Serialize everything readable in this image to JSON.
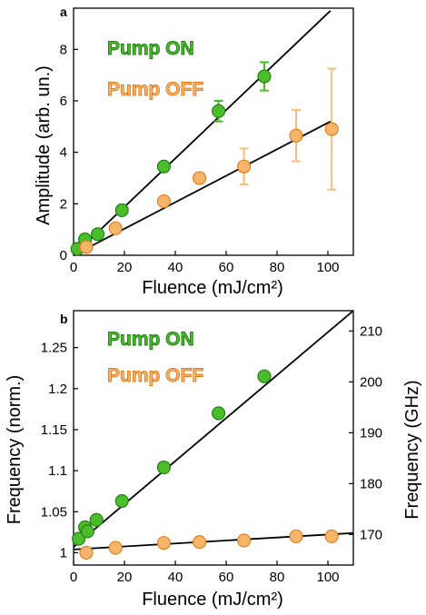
{
  "colors": {
    "on": "#4cbd2a",
    "on_dark": "#1e7a12",
    "off": "#f7b56a",
    "off_dark": "#e07a1a",
    "off_err": "#f5c07a",
    "fit": "#000000"
  },
  "chart_data": [
    {
      "panel_label": "a",
      "type": "scatter",
      "xlabel": "Fluence (mJ/cm²)",
      "ylabel": "Amplitude (arb. un.)",
      "xlim": [
        0,
        110
      ],
      "ylim": [
        0,
        9.6
      ],
      "x_ticks": [
        "0",
        "20",
        "40",
        "60",
        "80",
        "100"
      ],
      "y_ticks": [
        "0",
        "2",
        "4",
        "6",
        "8"
      ],
      "legend_placement": "top-left",
      "series": [
        {
          "name": "Pump ON",
          "color": "#4cbd2a",
          "points": [
            {
              "x": 1.5,
              "y": 0.25,
              "err": 0
            },
            {
              "x": 4.5,
              "y": 0.62,
              "err": 0
            },
            {
              "x": 9.5,
              "y": 0.82,
              "err": 0
            },
            {
              "x": 19,
              "y": 1.75,
              "err": 0
            },
            {
              "x": 35.5,
              "y": 3.45,
              "err": 0
            },
            {
              "x": 57,
              "y": 5.6,
              "err": 0.4
            },
            {
              "x": 75,
              "y": 6.95,
              "err": 0.55
            }
          ],
          "fit": {
            "x": [
              0,
              101
            ],
            "y": [
              0,
              9.5
            ]
          }
        },
        {
          "name": "Pump OFF",
          "color": "#f7b56a",
          "points": [
            {
              "x": 5,
              "y": 0.32,
              "err": 0
            },
            {
              "x": 16.5,
              "y": 1.05,
              "err": 0
            },
            {
              "x": 35.5,
              "y": 2.1,
              "err": 0
            },
            {
              "x": 49.5,
              "y": 3.0,
              "err": 0.2
            },
            {
              "x": 67,
              "y": 3.45,
              "err": 0.7
            },
            {
              "x": 87.5,
              "y": 4.65,
              "err": 1.0
            },
            {
              "x": 101.5,
              "y": 4.9,
              "err": 2.35
            }
          ],
          "fit": {
            "x": [
              0,
              101
            ],
            "y": [
              0,
              5.2
            ]
          }
        }
      ]
    },
    {
      "panel_label": "b",
      "type": "scatter",
      "xlabel": "Fluence (mJ/cm²)",
      "ylabel": "Frequency (norm.)",
      "y2label": "Frequency (GHz)",
      "xlim": [
        0,
        110
      ],
      "ylim": [
        0.985,
        1.295
      ],
      "y2lim": [
        164,
        214
      ],
      "x_ticks": [
        "0",
        "20",
        "40",
        "60",
        "80",
        "100"
      ],
      "y_ticks": [
        "1",
        "1.05",
        "1.1",
        "1.15",
        "1.2",
        "1.25"
      ],
      "y2_ticks": [
        "170",
        "180",
        "190",
        "200",
        "210"
      ],
      "legend_placement": "top-left",
      "series": [
        {
          "name": "Pump ON",
          "color": "#4cbd2a",
          "points": [
            {
              "x": 2,
              "y": 1.017
            },
            {
              "x": 4.5,
              "y": 1.031
            },
            {
              "x": 5.5,
              "y": 1.026
            },
            {
              "x": 9,
              "y": 1.04
            },
            {
              "x": 19,
              "y": 1.063
            },
            {
              "x": 35.5,
              "y": 1.104
            },
            {
              "x": 57,
              "y": 1.17
            },
            {
              "x": 75,
              "y": 1.215
            }
          ],
          "fit": {
            "x": [
              0,
              110
            ],
            "y": [
              1.007,
              1.295
            ]
          }
        },
        {
          "name": "Pump OFF",
          "color": "#f7b56a",
          "points": [
            {
              "x": 5,
              "y": 1.0
            },
            {
              "x": 16.5,
              "y": 1.006
            },
            {
              "x": 35.5,
              "y": 1.012
            },
            {
              "x": 49.5,
              "y": 1.013
            },
            {
              "x": 67,
              "y": 1.015
            },
            {
              "x": 87.5,
              "y": 1.02
            },
            {
              "x": 101.5,
              "y": 1.02
            }
          ],
          "fit": {
            "x": [
              0,
              110
            ],
            "y": [
              1.004,
              1.024
            ]
          }
        }
      ]
    }
  ]
}
